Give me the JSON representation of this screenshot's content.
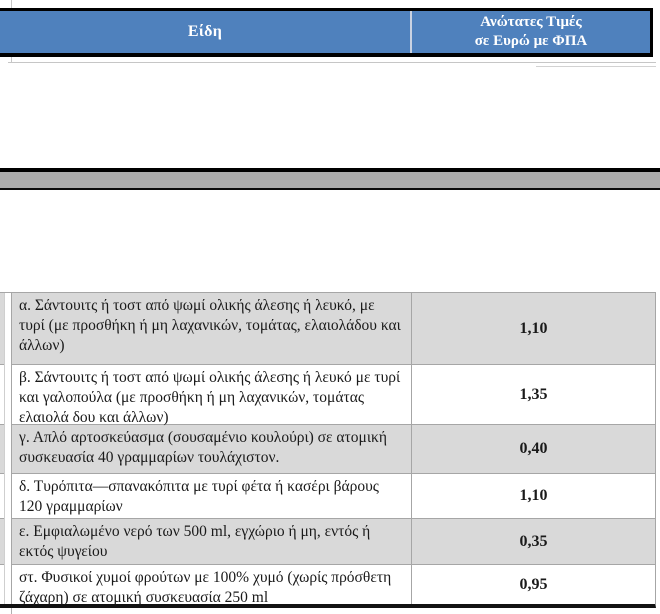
{
  "header": {
    "items_label": "Είδη",
    "price_label_line1": "Ανώτατες Τιμές",
    "price_label_line2": "σε Ευρώ με ΦΠΑ"
  },
  "colors": {
    "header_blue": "#4F81BD",
    "separator_gray": "#ABABAB",
    "row_shaded_gray": "#D9D9D9",
    "cell_border_gray": "#A6A6A6",
    "border_black": "#000000"
  },
  "table": {
    "rows": [
      {
        "item": "α. Σάντουιτς ή τοστ από ψωμί ολικής άλεσης ή λευκό, με τυρί (με προσθήκη ή μη λαχανικών, τομάτας, ελαιολάδου και άλλων)",
        "price": "1,10"
      },
      {
        "item": "β. Σάντουιτς ή τοστ από ψωμί ολικής άλεσης ή λευκό με τυρί και γαλοπούλα (με προσθήκη ή μη λαχανικών, τομάτας ελαιολά δου και άλλων)",
        "price": "1,35"
      },
      {
        "item": "γ. Απλό αρτοσκεύασμα (σουσαμένιο κουλούρι) σε ατομική συσκευασία 40 γραμμαρίων τουλάχιστον.",
        "price": "0,40"
      },
      {
        "item": "δ. Τυρόπιτα—σπανακόπιτα με τυρί φέτα ή κασέρι βάρους 120 γραμμαρίων",
        "price": "1,10"
      },
      {
        "item": "ε. Εμφιαλωμένο νερό των 500 ml, εγχώριο ή μη, εντός ή εκτός ψυγείου",
        "price": "0,35"
      },
      {
        "item": "στ. Φυσικοί χυμοί φρούτων με 100% χυμό (χωρίς πρόσθετη ζάχαρη) σε ατομική συσκευασία 250 ml",
        "price": "0,95"
      }
    ]
  }
}
